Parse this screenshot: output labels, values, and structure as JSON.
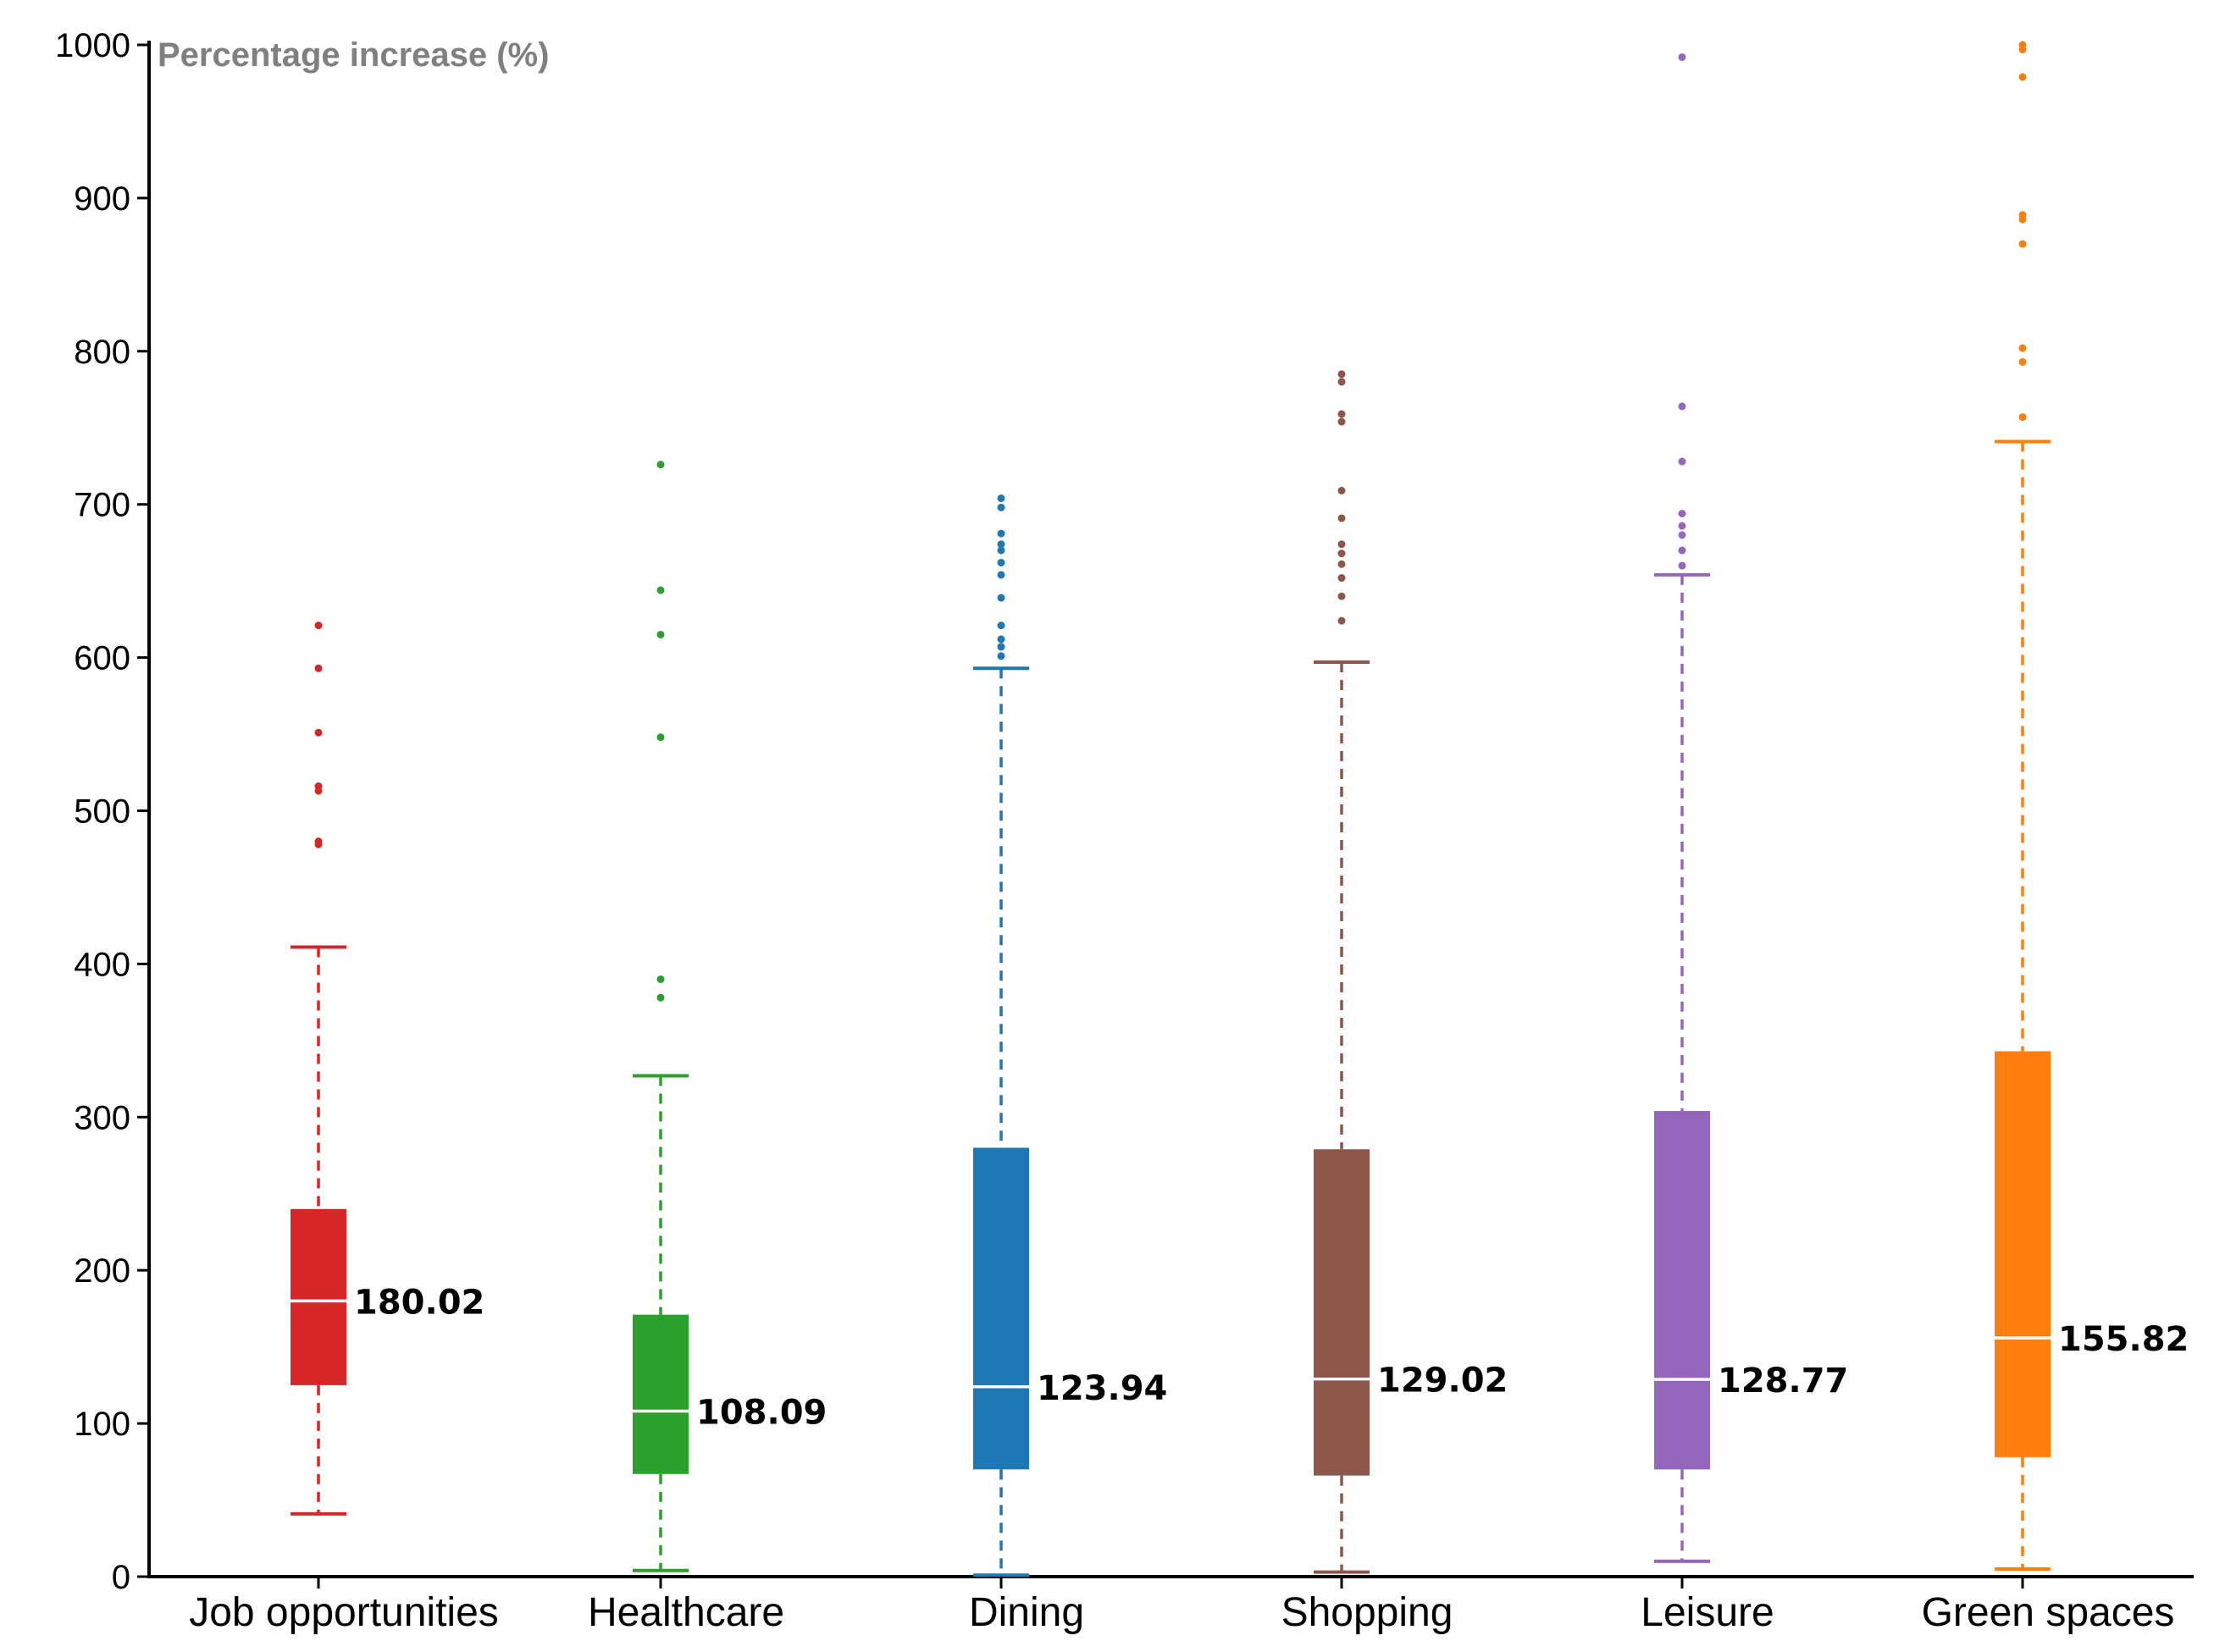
{
  "chart_data": {
    "type": "box",
    "title": "",
    "xlabel": "",
    "ylabel": "Percentage increase (%)",
    "ylim": [
      0,
      1000
    ],
    "yticks": [
      0,
      100,
      200,
      300,
      400,
      500,
      600,
      700,
      800,
      900,
      1000
    ],
    "grid": false,
    "series": [
      {
        "name": "Job opportunities",
        "color": "#d62728",
        "whisker_low": 41,
        "q1": 125,
        "median": 180.02,
        "q3": 240,
        "whisker_high": 411,
        "median_label": "180.02",
        "outliers": [
          478,
          480,
          513,
          516,
          551,
          593,
          621
        ]
      },
      {
        "name": "Healthcare",
        "color": "#2ca02c",
        "whisker_low": 4,
        "q1": 67,
        "median": 108.09,
        "q3": 171,
        "whisker_high": 327,
        "median_label": "108.09",
        "outliers": [
          378,
          390,
          548,
          615,
          644,
          726
        ]
      },
      {
        "name": "Dining",
        "color": "#1f77b4",
        "whisker_low": 1,
        "q1": 70,
        "median": 123.94,
        "q3": 280,
        "whisker_high": 593,
        "median_label": "123.94",
        "outliers": [
          601,
          607,
          612,
          621,
          639,
          654,
          662,
          670,
          674,
          681,
          698,
          704
        ]
      },
      {
        "name": "Shopping",
        "color": "#8c564b",
        "whisker_low": 3,
        "q1": 66,
        "median": 129.02,
        "q3": 279,
        "whisker_high": 597,
        "median_label": "129.02",
        "outliers": [
          624,
          640,
          652,
          661,
          668,
          674,
          691,
          709,
          754,
          759,
          780,
          785
        ]
      },
      {
        "name": "Leisure",
        "color": "#9467bd",
        "whisker_low": 10,
        "q1": 70,
        "median": 128.77,
        "q3": 304,
        "whisker_high": 654,
        "median_label": "128.77",
        "outliers": [
          660,
          670,
          680,
          686,
          694,
          728,
          764,
          992
        ]
      },
      {
        "name": "Green spaces",
        "color": "#ff7f0e",
        "whisker_low": 5,
        "q1": 78,
        "median": 155.82,
        "q3": 343,
        "whisker_high": 741,
        "median_label": "155.82",
        "outliers": [
          757,
          793,
          802,
          870,
          886,
          889,
          979,
          997,
          1000
        ]
      }
    ]
  }
}
